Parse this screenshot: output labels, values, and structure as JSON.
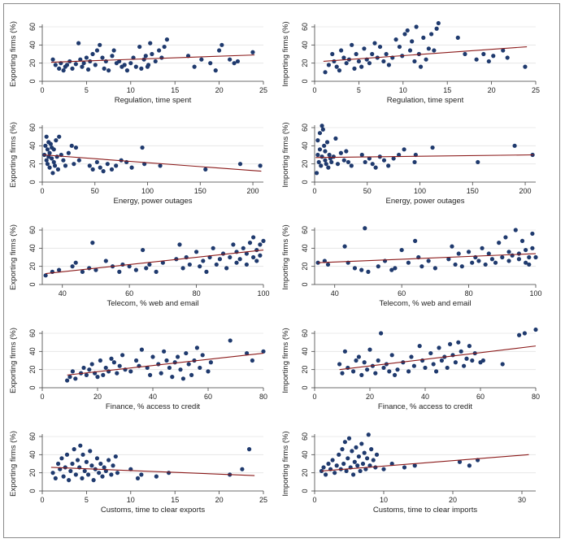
{
  "chart_data": [
    {
      "type": "scatter",
      "xlabel": "Regulation, time spent",
      "ylabel": "Exporting firms (%)",
      "xlim": [
        0,
        25
      ],
      "ylim": [
        0,
        60
      ],
      "xticks": [
        0,
        5,
        10,
        15,
        20,
        25
      ],
      "yticks": [
        0,
        20,
        40,
        60
      ],
      "grid": "horizontal",
      "fit": {
        "x": [
          1,
          24
        ],
        "y": [
          21,
          29
        ]
      },
      "x": [
        1.2,
        1.5,
        1.9,
        2.1,
        2.4,
        2.6,
        2.8,
        3.1,
        3.4,
        3.8,
        4.1,
        4.3,
        4.5,
        4.7,
        5.0,
        5.2,
        5.4,
        5.7,
        6.0,
        6.2,
        6.5,
        6.8,
        7.0,
        7.2,
        7.5,
        7.9,
        8.1,
        8.4,
        8.7,
        9.0,
        9.3,
        9.6,
        10.0,
        10.3,
        10.6,
        11.0,
        11.2,
        11.5,
        11.7,
        11.9,
        12.0,
        12.2,
        12.4,
        12.8,
        13.2,
        13.5,
        13.8,
        14.1,
        16.5,
        17.2,
        18.0,
        19.0,
        19.6,
        20.0,
        20.3,
        21.2,
        21.7,
        22.1,
        23.8
      ],
      "y": [
        24,
        18,
        14,
        20,
        12,
        16,
        18,
        22,
        14,
        19,
        42,
        24,
        16,
        20,
        26,
        13,
        22,
        30,
        18,
        34,
        40,
        26,
        14,
        22,
        12,
        28,
        34,
        20,
        22,
        16,
        18,
        12,
        20,
        26,
        16,
        38,
        14,
        24,
        28,
        16,
        18,
        42,
        30,
        22,
        34,
        26,
        38,
        46,
        28,
        16,
        24,
        20,
        12,
        34,
        40,
        24,
        20,
        22,
        32
      ]
    },
    {
      "type": "scatter",
      "xlabel": "Regulation, time spent",
      "ylabel": "Importing firms (%)",
      "xlim": [
        0,
        25
      ],
      "ylim": [
        0,
        60
      ],
      "xticks": [
        0,
        5,
        10,
        15,
        20,
        25
      ],
      "yticks": [
        0,
        20,
        40,
        60
      ],
      "grid": "horizontal",
      "fit": {
        "x": [
          1,
          24
        ],
        "y": [
          22,
          38
        ]
      },
      "x": [
        1.2,
        1.6,
        2.0,
        2.2,
        2.5,
        2.8,
        3.0,
        3.3,
        3.6,
        3.9,
        4.2,
        4.5,
        4.7,
        5.0,
        5.3,
        5.6,
        5.9,
        6.2,
        6.5,
        6.8,
        7.1,
        7.4,
        7.8,
        8.1,
        8.4,
        8.8,
        9.2,
        9.6,
        9.9,
        10.2,
        10.5,
        10.8,
        11.0,
        11.3,
        11.5,
        11.8,
        12.0,
        12.3,
        12.6,
        12.9,
        13.2,
        13.5,
        13.8,
        14.0,
        16.2,
        17.0,
        18.3,
        19.1,
        19.7,
        20.2,
        21.3,
        21.8,
        23.8
      ],
      "y": [
        10,
        18,
        30,
        22,
        16,
        12,
        34,
        26,
        20,
        24,
        40,
        14,
        30,
        22,
        16,
        36,
        24,
        20,
        30,
        42,
        26,
        38,
        22,
        30,
        18,
        26,
        46,
        38,
        28,
        52,
        56,
        34,
        44,
        22,
        60,
        30,
        16,
        48,
        24,
        36,
        52,
        34,
        58,
        64,
        48,
        30,
        24,
        30,
        22,
        28,
        34,
        26,
        16
      ]
    },
    {
      "type": "scatter",
      "xlabel": "Energy, power outages",
      "ylabel": "Exporting firms (%)",
      "xlim": [
        0,
        210
      ],
      "ylim": [
        0,
        60
      ],
      "xticks": [
        0,
        50,
        100,
        150,
        200
      ],
      "yticks": [
        0,
        20,
        40,
        60
      ],
      "grid": "horizontal",
      "fit": {
        "x": [
          1,
          208
        ],
        "y": [
          30,
          12
        ]
      },
      "x": [
        2,
        3,
        4,
        4,
        5,
        5,
        6,
        6,
        7,
        7,
        8,
        9,
        9,
        10,
        11,
        11,
        12,
        13,
        14,
        15,
        16,
        18,
        20,
        22,
        25,
        28,
        30,
        32,
        35,
        45,
        48,
        52,
        55,
        58,
        62,
        66,
        70,
        75,
        80,
        85,
        95,
        97,
        112,
        155,
        188,
        207
      ],
      "y": [
        30,
        40,
        24,
        50,
        36,
        20,
        44,
        28,
        32,
        16,
        42,
        26,
        38,
        10,
        22,
        36,
        18,
        46,
        28,
        14,
        50,
        30,
        24,
        18,
        32,
        40,
        20,
        38,
        24,
        18,
        14,
        22,
        16,
        12,
        20,
        14,
        18,
        24,
        22,
        16,
        38,
        20,
        18,
        14,
        20,
        18
      ]
    },
    {
      "type": "scatter",
      "xlabel": "Energy, power outages",
      "ylabel": "Importing firms (%)",
      "xlim": [
        0,
        210
      ],
      "ylim": [
        0,
        60
      ],
      "xticks": [
        0,
        50,
        100,
        150,
        200
      ],
      "yticks": [
        0,
        20,
        40,
        60
      ],
      "grid": "horizontal",
      "fit": {
        "x": [
          1,
          208
        ],
        "y": [
          27,
          30
        ]
      },
      "x": [
        2,
        3,
        3,
        4,
        5,
        5,
        6,
        7,
        7,
        8,
        9,
        10,
        10,
        11,
        12,
        13,
        14,
        15,
        16,
        18,
        20,
        22,
        25,
        28,
        30,
        32,
        35,
        45,
        48,
        52,
        55,
        58,
        62,
        66,
        70,
        75,
        80,
        85,
        95,
        96,
        112,
        155,
        190,
        207
      ],
      "y": [
        10,
        30,
        46,
        22,
        54,
        36,
        18,
        62,
        28,
        58,
        40,
        24,
        34,
        20,
        44,
        16,
        30,
        26,
        22,
        28,
        48,
        20,
        32,
        24,
        34,
        22,
        18,
        30,
        22,
        26,
        20,
        16,
        28,
        24,
        18,
        26,
        30,
        36,
        22,
        30,
        38,
        22,
        40,
        30
      ]
    },
    {
      "type": "scatter",
      "xlabel": "Telecom, % web and email",
      "ylabel": "Exporting firms (%)",
      "xlim": [
        34,
        100
      ],
      "ylim": [
        0,
        60
      ],
      "xticks": [
        40,
        60,
        80,
        100
      ],
      "yticks": [
        0,
        20,
        40,
        60
      ],
      "grid": "horizontal",
      "fit": {
        "x": [
          35,
          100
        ],
        "y": [
          12,
          38
        ]
      },
      "x": [
        35,
        37,
        39,
        43,
        44,
        46,
        48,
        49,
        50,
        53,
        55,
        57,
        58,
        60,
        62,
        64,
        65,
        66,
        68,
        70,
        74,
        75,
        76,
        77,
        78,
        80,
        81,
        82,
        83,
        84,
        85,
        86,
        87,
        88,
        89,
        90,
        91,
        92,
        92,
        93,
        94,
        95,
        95,
        96,
        97,
        97,
        98,
        98,
        99,
        99,
        100
      ],
      "y": [
        10,
        14,
        16,
        20,
        24,
        14,
        18,
        46,
        16,
        26,
        20,
        14,
        22,
        20,
        16,
        38,
        18,
        22,
        14,
        24,
        28,
        44,
        18,
        30,
        22,
        36,
        20,
        26,
        14,
        30,
        40,
        22,
        28,
        34,
        18,
        30,
        44,
        24,
        36,
        28,
        40,
        22,
        34,
        46,
        30,
        52,
        38,
        26,
        44,
        32,
        48
      ]
    },
    {
      "type": "scatter",
      "xlabel": "Telecom, % web and email",
      "ylabel": "Importing firms (%)",
      "xlim": [
        34,
        100
      ],
      "ylim": [
        0,
        60
      ],
      "xticks": [
        40,
        60,
        80,
        100
      ],
      "yticks": [
        0,
        20,
        40,
        60
      ],
      "grid": "horizontal",
      "fit": {
        "x": [
          35,
          100
        ],
        "y": [
          24,
          34
        ]
      },
      "x": [
        35,
        37,
        38,
        43,
        44,
        46,
        48,
        49,
        50,
        53,
        55,
        57,
        58,
        60,
        62,
        64,
        65,
        66,
        68,
        70,
        74,
        75,
        76,
        77,
        78,
        80,
        81,
        82,
        83,
        84,
        85,
        86,
        87,
        88,
        89,
        90,
        91,
        92,
        92,
        93,
        94,
        95,
        95,
        96,
        97,
        97,
        98,
        98,
        99,
        99,
        100
      ],
      "y": [
        24,
        26,
        22,
        42,
        24,
        18,
        16,
        62,
        14,
        20,
        26,
        16,
        18,
        38,
        24,
        48,
        30,
        20,
        26,
        18,
        28,
        42,
        22,
        34,
        20,
        36,
        24,
        30,
        26,
        40,
        22,
        34,
        28,
        24,
        46,
        30,
        52,
        26,
        36,
        32,
        60,
        28,
        34,
        48,
        24,
        38,
        30,
        22,
        40,
        56,
        30
      ]
    },
    {
      "type": "scatter",
      "xlabel": "Finance, % access to credit",
      "ylabel": "Exporting firms (%)",
      "xlim": [
        0,
        80
      ],
      "ylim": [
        0,
        60
      ],
      "xticks": [
        0,
        20,
        40,
        60,
        80
      ],
      "yticks": [
        0,
        20,
        40,
        60
      ],
      "grid": "horizontal",
      "fit": {
        "x": [
          9,
          80
        ],
        "y": [
          14,
          38
        ]
      },
      "x": [
        9,
        10,
        11,
        12,
        14,
        15,
        16,
        17,
        18,
        19,
        20,
        21,
        22,
        23,
        24,
        25,
        26,
        27,
        28,
        29,
        30,
        32,
        34,
        35,
        36,
        38,
        39,
        40,
        42,
        43,
        44,
        45,
        46,
        47,
        48,
        49,
        50,
        51,
        52,
        53,
        54,
        55,
        56,
        57,
        58,
        60,
        61,
        68,
        74,
        76,
        80
      ],
      "y": [
        8,
        12,
        18,
        10,
        16,
        22,
        14,
        20,
        26,
        16,
        12,
        30,
        14,
        22,
        18,
        32,
        28,
        16,
        24,
        36,
        20,
        18,
        30,
        24,
        42,
        22,
        14,
        34,
        26,
        16,
        40,
        30,
        22,
        12,
        28,
        34,
        20,
        10,
        38,
        26,
        14,
        30,
        44,
        22,
        36,
        18,
        28,
        52,
        38,
        30,
        40
      ]
    },
    {
      "type": "scatter",
      "xlabel": "Finance, % access to credit",
      "ylabel": "Importing firms (%)",
      "xlim": [
        0,
        80
      ],
      "ylim": [
        0,
        60
      ],
      "xticks": [
        0,
        20,
        40,
        60,
        80
      ],
      "yticks": [
        0,
        20,
        40,
        60
      ],
      "grid": "horizontal",
      "fit": {
        "x": [
          9,
          80
        ],
        "y": [
          20,
          46
        ]
      },
      "x": [
        9,
        10,
        11,
        12,
        14,
        15,
        16,
        17,
        18,
        19,
        20,
        21,
        22,
        23,
        24,
        25,
        26,
        27,
        28,
        29,
        30,
        32,
        34,
        35,
        36,
        38,
        39,
        40,
        42,
        43,
        44,
        45,
        46,
        47,
        48,
        49,
        50,
        51,
        52,
        53,
        54,
        55,
        56,
        57,
        58,
        60,
        61,
        68,
        74,
        76,
        80
      ],
      "y": [
        26,
        16,
        40,
        22,
        18,
        30,
        34,
        14,
        28,
        20,
        42,
        24,
        16,
        30,
        60,
        22,
        26,
        18,
        36,
        14,
        20,
        28,
        18,
        34,
        24,
        46,
        30,
        22,
        38,
        26,
        18,
        44,
        30,
        34,
        22,
        48,
        36,
        28,
        50,
        40,
        24,
        32,
        46,
        30,
        38,
        28,
        30,
        26,
        58,
        60,
        64
      ]
    },
    {
      "type": "scatter",
      "xlabel": "Customs, time to clear exports",
      "ylabel": "Exporting firms (%)",
      "xlim": [
        0,
        25
      ],
      "ylim": [
        0,
        60
      ],
      "xticks": [
        0,
        5,
        10,
        15,
        20,
        25
      ],
      "yticks": [
        0,
        20,
        40,
        60
      ],
      "grid": "horizontal",
      "fit": {
        "x": [
          1,
          24
        ],
        "y": [
          26,
          17
        ]
      },
      "x": [
        1.2,
        1.5,
        1.8,
        2.0,
        2.2,
        2.4,
        2.6,
        2.8,
        3.0,
        3.2,
        3.4,
        3.6,
        3.8,
        4.0,
        4.2,
        4.3,
        4.5,
        4.6,
        4.8,
        5.0,
        5.2,
        5.4,
        5.6,
        5.8,
        6.0,
        6.2,
        6.4,
        6.6,
        6.8,
        7.0,
        7.2,
        7.5,
        7.8,
        8.0,
        8.3,
        8.5,
        10.0,
        10.8,
        11.2,
        12.9,
        14.3,
        21.2,
        22.6,
        23.4
      ],
      "y": [
        20,
        14,
        30,
        24,
        36,
        16,
        26,
        40,
        12,
        22,
        30,
        46,
        18,
        34,
        26,
        50,
        14,
        40,
        22,
        32,
        18,
        44,
        28,
        12,
        24,
        36,
        20,
        30,
        16,
        26,
        22,
        34,
        18,
        28,
        38,
        20,
        24,
        14,
        18,
        16,
        20,
        18,
        24,
        46
      ]
    },
    {
      "type": "scatter",
      "xlabel": "Customs, time to clear imports",
      "ylabel": "Importing firms (%)",
      "xlim": [
        0,
        32
      ],
      "ylim": [
        0,
        60
      ],
      "xticks": [
        0,
        10,
        20,
        30
      ],
      "yticks": [
        0,
        20,
        40,
        60
      ],
      "grid": "horizontal",
      "fit": {
        "x": [
          1,
          31
        ],
        "y": [
          22,
          40
        ]
      },
      "x": [
        1.0,
        1.3,
        1.6,
        2.0,
        2.3,
        2.6,
        2.9,
        3.2,
        3.5,
        3.8,
        4.0,
        4.2,
        4.4,
        4.6,
        4.8,
        5.0,
        5.2,
        5.4,
        5.6,
        5.8,
        6.0,
        6.2,
        6.4,
        6.6,
        6.8,
        7.0,
        7.2,
        7.4,
        7.6,
        7.8,
        8.0,
        8.2,
        8.5,
        8.8,
        9.0,
        10.0,
        11.2,
        13.0,
        14.5,
        21.0,
        22.4,
        23.6
      ],
      "y": [
        22,
        26,
        18,
        30,
        24,
        34,
        20,
        28,
        40,
        24,
        46,
        30,
        54,
        22,
        36,
        58,
        26,
        44,
        18,
        32,
        48,
        28,
        38,
        22,
        52,
        30,
        42,
        24,
        36,
        62,
        28,
        46,
        34,
        26,
        40,
        24,
        30,
        26,
        28,
        32,
        28,
        34
      ]
    }
  ]
}
